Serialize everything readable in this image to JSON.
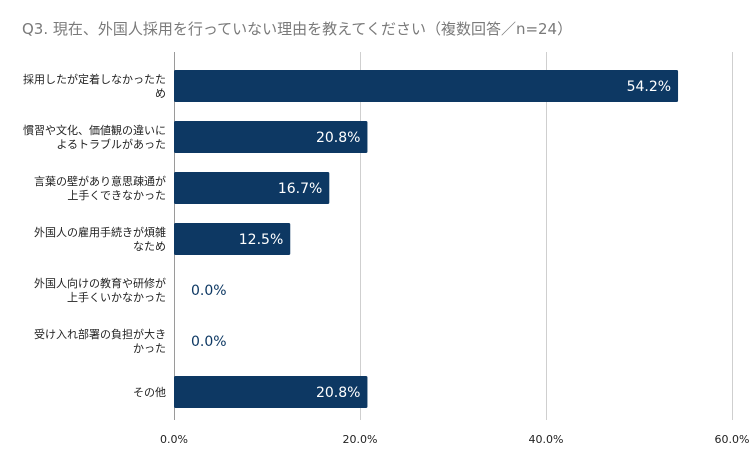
{
  "chart_data": {
    "type": "bar",
    "orientation": "horizontal",
    "title": "Q3. 現在、外国人採用を行っていない理由を教えてください（複数回答／n=24）",
    "categories": [
      [
        "採用したが定着しなかったた",
        "め"
      ],
      [
        "慣習や文化、価値観の違いに",
        "よるトラブルがあった"
      ],
      [
        "言葉の壁があり意思疎通が",
        "上手くできなかった"
      ],
      [
        "外国人の雇用手続きが煩雑",
        "なため"
      ],
      [
        "外国人向けの教育や研修が",
        "上手くいかなかった"
      ],
      [
        "受け入れ部署の負担が大き",
        "かった"
      ],
      [
        "その他"
      ]
    ],
    "values": [
      54.2,
      20.8,
      16.7,
      12.5,
      0.0,
      0.0,
      20.8
    ],
    "value_labels": [
      "54.2%",
      "20.8%",
      "16.7%",
      "12.5%",
      "0.0%",
      "0.0%",
      "20.8%"
    ],
    "xlim": [
      0,
      60
    ],
    "xticks": [
      0,
      20,
      40,
      60
    ],
    "xtick_labels": [
      "0.0%",
      "20.0%",
      "40.0%",
      "60.0%"
    ],
    "grid": "vertical",
    "legend": "none",
    "bar_color": "#0d3863",
    "grid_color": "#cfcfcf",
    "label_inside_color": "#ffffff",
    "label_outside_color": "#0d3863"
  }
}
